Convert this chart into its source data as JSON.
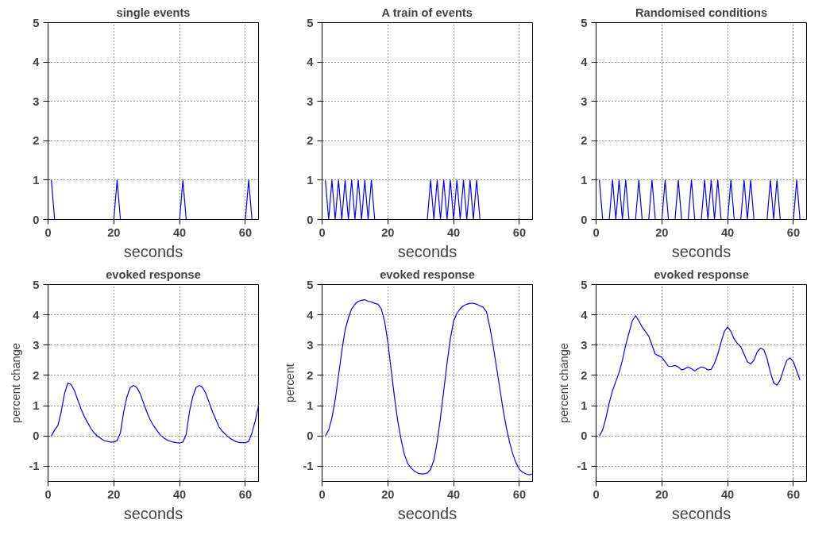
{
  "chart_data": [
    {
      "type": "line",
      "title": "single events",
      "xlabel": "seconds",
      "xlim": [
        0,
        64
      ],
      "xticks": [
        0,
        20,
        40,
        60
      ],
      "ylim": [
        0,
        5
      ],
      "yticks": [
        0,
        1,
        2,
        3,
        4,
        5
      ],
      "grid": true,
      "x": [
        1,
        2,
        20,
        21,
        22,
        40,
        41,
        42,
        60,
        61,
        62
      ],
      "series": [
        {
          "color": "#0000ff",
          "values": [
            1,
            0,
            0,
            1,
            0,
            0,
            1,
            0,
            0,
            1,
            0
          ]
        }
      ]
    },
    {
      "type": "line",
      "title": "A train of events",
      "xlabel": "seconds",
      "xlim": [
        0,
        64
      ],
      "xticks": [
        0,
        20,
        40,
        60
      ],
      "ylim": [
        0,
        5
      ],
      "yticks": [
        0,
        1,
        2,
        3,
        4,
        5
      ],
      "grid": true,
      "x": [
        1,
        2,
        3,
        4,
        5,
        6,
        7,
        8,
        9,
        10,
        11,
        12,
        13,
        14,
        15,
        16,
        32,
        33,
        34,
        35,
        36,
        37,
        38,
        39,
        40,
        41,
        42,
        43,
        44,
        45,
        46,
        47,
        48
      ],
      "series": [
        {
          "color": "#0000ff",
          "values": [
            1,
            0,
            1,
            0,
            1,
            0,
            1,
            0,
            1,
            0,
            1,
            0,
            1,
            0,
            1,
            0,
            0,
            1,
            0,
            1,
            0,
            1,
            0,
            1,
            0,
            1,
            0,
            1,
            0,
            1,
            0,
            1,
            0
          ]
        }
      ]
    },
    {
      "type": "line",
      "title": "Randomised conditions",
      "xlabel": "seconds",
      "xlim": [
        0,
        64
      ],
      "xticks": [
        0,
        20,
        40,
        60
      ],
      "ylim": [
        0,
        5
      ],
      "yticks": [
        0,
        1,
        2,
        3,
        4,
        5
      ],
      "grid": true,
      "x": [
        1,
        2,
        4,
        5,
        6,
        7,
        8,
        9,
        10,
        12,
        13,
        14,
        16,
        17,
        18,
        20,
        21,
        22,
        24,
        25,
        26,
        28,
        29,
        30,
        32,
        33,
        34,
        35,
        36,
        37,
        38,
        40,
        41,
        42,
        44,
        45,
        46,
        47,
        48,
        52,
        53,
        54,
        55,
        56,
        60,
        61,
        62
      ],
      "series": [
        {
          "color": "#0000ff",
          "values": [
            1,
            0,
            0,
            1,
            0,
            1,
            0,
            1,
            0,
            0,
            1,
            0,
            0,
            1,
            0,
            0,
            1,
            0,
            0,
            1,
            0,
            0,
            1,
            0,
            0,
            1,
            0,
            1,
            0,
            1,
            0,
            0,
            1,
            0,
            0,
            1,
            0,
            1,
            0,
            0,
            1,
            0,
            1,
            0,
            0,
            1,
            0
          ]
        }
      ]
    },
    {
      "type": "line",
      "title": "evoked response",
      "xlabel": "seconds",
      "ylabel": "percent change",
      "xlim": [
        0,
        64
      ],
      "xticks": [
        0,
        20,
        40,
        60
      ],
      "ylim": [
        -1.5,
        5
      ],
      "yticks": [
        -1,
        0,
        1,
        2,
        3,
        4,
        5
      ],
      "grid": true,
      "x": [
        1,
        2,
        3,
        4,
        5,
        6,
        7,
        8,
        9,
        10,
        11,
        12,
        13,
        14,
        15,
        16,
        17,
        18,
        19,
        20,
        21,
        22,
        23,
        24,
        25,
        26,
        27,
        28,
        29,
        30,
        31,
        32,
        33,
        34,
        35,
        36,
        37,
        38,
        39,
        40,
        41,
        42,
        43,
        44,
        45,
        46,
        47,
        48,
        49,
        50,
        51,
        52,
        53,
        54,
        55,
        56,
        57,
        58,
        59,
        60,
        61,
        62,
        63,
        64
      ],
      "series": [
        {
          "color": "#0000ff",
          "values": [
            0,
            0.2,
            0.35,
            0.8,
            1.4,
            1.75,
            1.7,
            1.5,
            1.2,
            0.9,
            0.65,
            0.45,
            0.25,
            0.1,
            0,
            -0.08,
            -0.15,
            -0.18,
            -0.2,
            -0.2,
            -0.15,
            0.1,
            0.8,
            1.3,
            1.6,
            1.67,
            1.6,
            1.4,
            1.1,
            0.8,
            0.55,
            0.35,
            0.2,
            0.05,
            -0.05,
            -0.12,
            -0.17,
            -0.2,
            -0.22,
            -0.23,
            -0.2,
            0.05,
            0.8,
            1.3,
            1.6,
            1.67,
            1.6,
            1.4,
            1.1,
            0.8,
            0.55,
            0.3,
            0.15,
            0.05,
            -0.05,
            -0.12,
            -0.18,
            -0.21,
            -0.22,
            -0.22,
            -0.18,
            0.1,
            0.5,
            1.0
          ]
        }
      ]
    },
    {
      "type": "line",
      "title": "evoked response",
      "xlabel": "seconds",
      "ylabel": "percent",
      "xlim": [
        0,
        64
      ],
      "xticks": [
        0,
        20,
        40,
        60
      ],
      "ylim": [
        -1.5,
        5
      ],
      "yticks": [
        -1,
        0,
        1,
        2,
        3,
        4,
        5
      ],
      "grid": true,
      "x": [
        1,
        2,
        3,
        4,
        5,
        6,
        7,
        8,
        9,
        10,
        11,
        12,
        13,
        14,
        15,
        16,
        17,
        18,
        19,
        20,
        21,
        22,
        23,
        24,
        25,
        26,
        27,
        28,
        29,
        30,
        31,
        32,
        33,
        34,
        35,
        36,
        37,
        38,
        39,
        40,
        41,
        42,
        43,
        44,
        45,
        46,
        47,
        48,
        49,
        50,
        51,
        52,
        53,
        54,
        55,
        56,
        57,
        58,
        59,
        60,
        61,
        62,
        63,
        64
      ],
      "series": [
        {
          "color": "#0000ff",
          "values": [
            0,
            0.2,
            0.6,
            1.2,
            2.0,
            2.8,
            3.5,
            3.9,
            4.2,
            4.35,
            4.45,
            4.48,
            4.5,
            4.45,
            4.43,
            4.38,
            4.35,
            4.2,
            3.8,
            3.1,
            2.2,
            1.3,
            0.5,
            -0.1,
            -0.6,
            -0.9,
            -1.05,
            -1.15,
            -1.22,
            -1.25,
            -1.25,
            -1.22,
            -1.1,
            -0.8,
            -0.2,
            0.6,
            1.5,
            2.4,
            3.2,
            3.8,
            4.05,
            4.2,
            4.3,
            4.35,
            4.38,
            4.38,
            4.35,
            4.3,
            4.25,
            4.1,
            3.6,
            3.0,
            2.3,
            1.6,
            0.9,
            0.3,
            -0.2,
            -0.6,
            -0.9,
            -1.1,
            -1.2,
            -1.25,
            -1.28,
            -1.25
          ]
        }
      ]
    },
    {
      "type": "line",
      "title": "evoked response",
      "xlabel": "seconds",
      "ylabel": "percent change",
      "xlim": [
        0,
        64
      ],
      "xticks": [
        0,
        20,
        40,
        60
      ],
      "ylim": [
        -1.5,
        5
      ],
      "yticks": [
        -1,
        0,
        1,
        2,
        3,
        4,
        5
      ],
      "grid": true,
      "x": [
        1,
        2,
        3,
        4,
        5,
        6,
        7,
        8,
        9,
        10,
        11,
        12,
        13,
        14,
        15,
        16,
        17,
        18,
        19,
        20,
        21,
        22,
        23,
        24,
        25,
        26,
        27,
        28,
        29,
        30,
        31,
        32,
        33,
        34,
        35,
        36,
        37,
        38,
        39,
        40,
        41,
        42,
        43,
        44,
        45,
        46,
        47,
        48,
        49,
        50,
        51,
        52,
        53,
        54,
        55,
        56,
        57,
        58,
        59,
        60,
        61,
        62
      ],
      "series": [
        {
          "color": "#0000ff",
          "values": [
            0,
            0.2,
            0.6,
            1.1,
            1.5,
            1.8,
            2.1,
            2.5,
            3.0,
            3.4,
            3.8,
            3.97,
            3.8,
            3.6,
            3.45,
            3.3,
            3.0,
            2.7,
            2.65,
            2.6,
            2.45,
            2.3,
            2.3,
            2.33,
            2.28,
            2.18,
            2.22,
            2.28,
            2.22,
            2.15,
            2.22,
            2.28,
            2.25,
            2.18,
            2.2,
            2.4,
            2.7,
            3.1,
            3.45,
            3.6,
            3.45,
            3.2,
            3.05,
            2.95,
            2.7,
            2.45,
            2.38,
            2.5,
            2.78,
            2.9,
            2.85,
            2.55,
            2.1,
            1.75,
            1.68,
            1.85,
            2.2,
            2.5,
            2.58,
            2.45,
            2.15,
            1.85
          ]
        }
      ]
    }
  ]
}
